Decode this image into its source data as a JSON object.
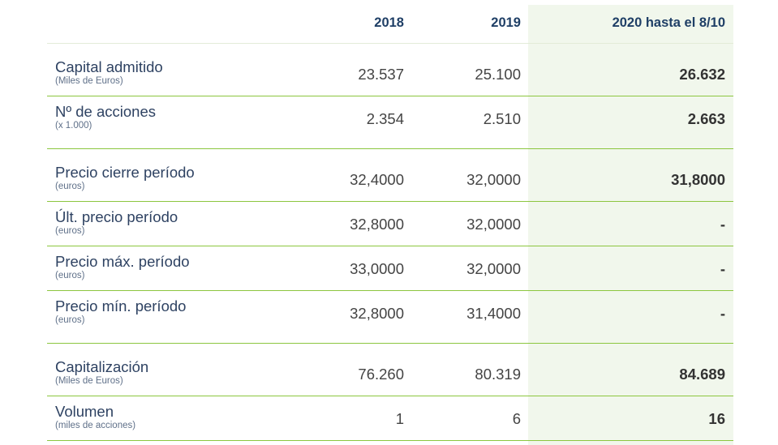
{
  "table": {
    "headers": [
      "2018",
      "2019",
      "2020 hasta el 8/10"
    ],
    "rows": [
      {
        "label": "Capital admitido",
        "sublabel": "(Miles de Euros)",
        "y2018": "23.537",
        "y2019": "25.100",
        "y2020": "26.632"
      },
      {
        "label": "Nº de acciones",
        "sublabel": "(x 1.000)",
        "y2018": "2.354",
        "y2019": "2.510",
        "y2020": "2.663"
      },
      {
        "label": "Precio cierre período",
        "sublabel": "(euros)",
        "y2018": "32,4000",
        "y2019": "32,0000",
        "y2020": "31,8000"
      },
      {
        "label": "Últ. precio período",
        "sublabel": "(euros)",
        "y2018": "32,8000",
        "y2019": "32,0000",
        "y2020": "-"
      },
      {
        "label": "Precio máx. período",
        "sublabel": "(euros)",
        "y2018": "33,0000",
        "y2019": "32,0000",
        "y2020": "-"
      },
      {
        "label": "Precio mín. período",
        "sublabel": "(euros)",
        "y2018": "32,8000",
        "y2019": "31,4000",
        "y2020": "-"
      },
      {
        "label": "Capitalización",
        "sublabel": "(Miles de Euros)",
        "y2018": "76.260",
        "y2019": "80.319",
        "y2020": "84.689"
      },
      {
        "label": "Volumen",
        "sublabel": "(miles de acciones)",
        "y2018": "1",
        "y2019": "6",
        "y2020": "16"
      }
    ]
  },
  "colors": {
    "header_text": "#1f3f66",
    "accent_line": "#8cc63f",
    "highlight_column": "#f1f7ec"
  }
}
